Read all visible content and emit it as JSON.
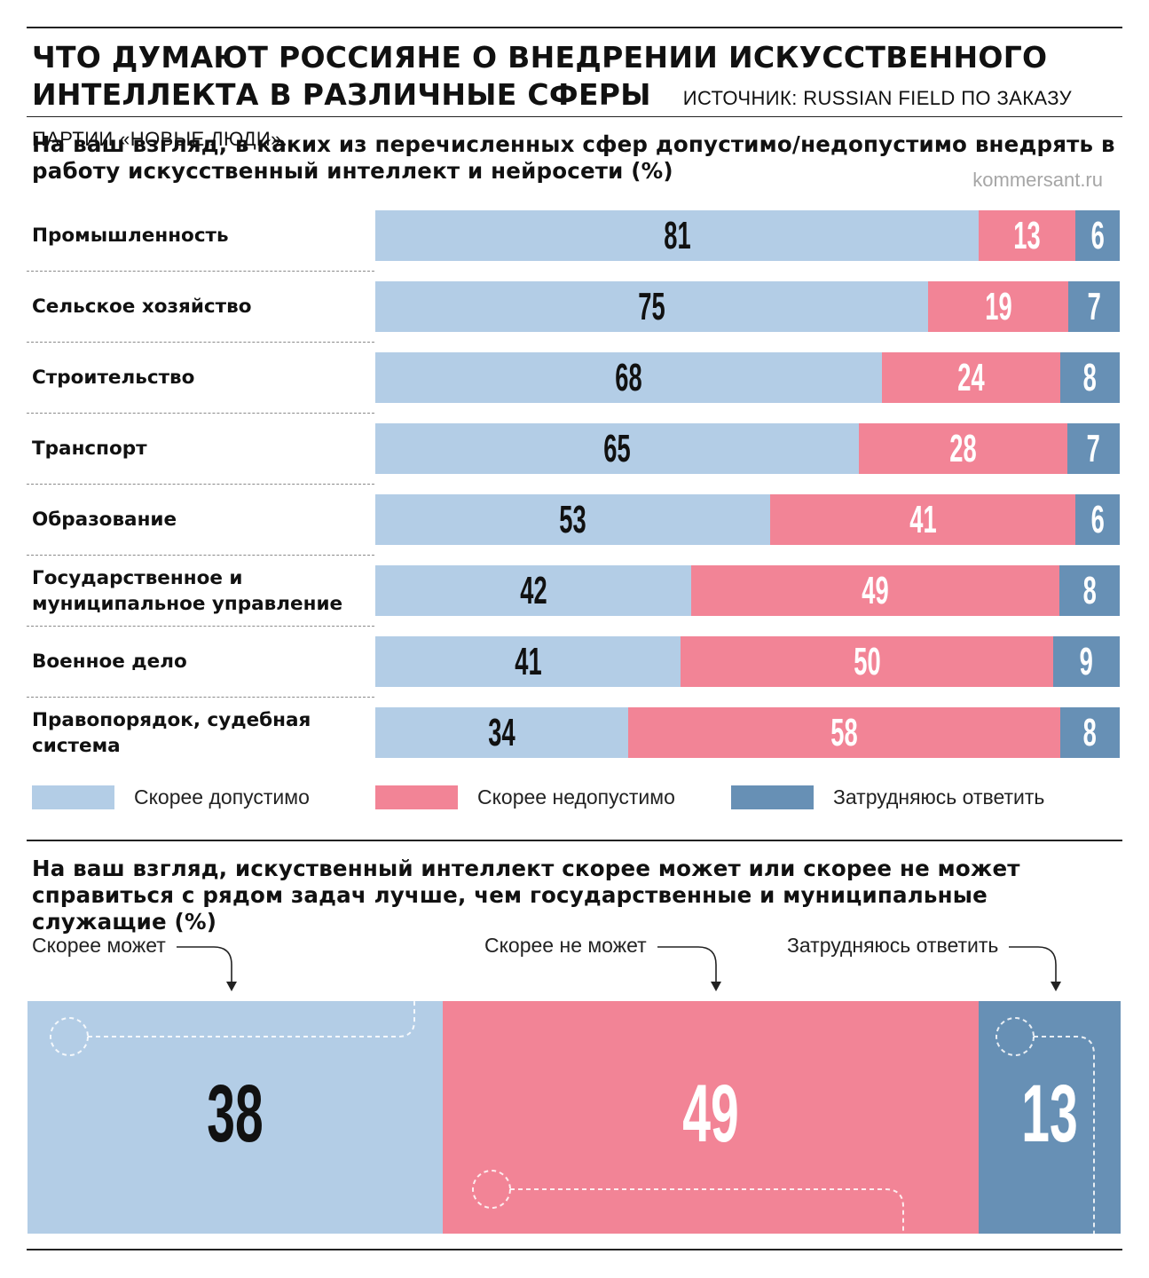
{
  "title": "ЧТО ДУМАЮТ РОССИЯНЕ О ВНЕДРЕНИИ ИСКУССТВЕННОГО ИНТЕЛЛЕКТА В РАЗЛИЧНЫЕ СФЕРЫ",
  "source": "ИСТОЧНИК: RUSSIAN FIELD ПО ЗАКАЗУ ПАРТИИ «НОВЫЕ ЛЮДИ».",
  "site": "kommersant.ru",
  "colors": {
    "allow": "#b3cde6",
    "deny": "#f28496",
    "unsure": "#6790b5"
  },
  "chart_data": [
    {
      "type": "bar",
      "title": "На ваш взгляд, в каких из перечисленных сфер допустимо/недопустимо внедрять в работу искусственный интеллект и нейросети (%)",
      "stacked": true,
      "orientation": "horizontal",
      "categories": [
        "Промышленность",
        "Сельское хозяйство",
        "Строительство",
        "Транспорт",
        "Образование",
        "Государственное и муниципальное управление",
        "Военное дело",
        "Правопорядок, судебная система"
      ],
      "series": [
        {
          "name": "Скорее допустимо",
          "color": "#b3cde6",
          "values": [
            81,
            75,
            68,
            65,
            53,
            42,
            41,
            34
          ]
        },
        {
          "name": "Скорее недопустимо",
          "color": "#f28496",
          "values": [
            13,
            19,
            24,
            28,
            41,
            49,
            50,
            58
          ]
        },
        {
          "name": "Затрудняюсь ответить",
          "color": "#6790b5",
          "values": [
            6,
            7,
            8,
            7,
            6,
            8,
            9,
            8
          ]
        }
      ],
      "legend": "bottom"
    },
    {
      "type": "bar",
      "title": "На ваш взгляд, искуственный интеллект скорее может или скорее не может справиться с рядом задач лучше, чем государственные и муниципальные служащие (%)",
      "stacked": true,
      "orientation": "horizontal",
      "categories": [
        ""
      ],
      "series": [
        {
          "name": "Скорее может",
          "color": "#b3cde6",
          "values": [
            38
          ]
        },
        {
          "name": "Скорее не может",
          "color": "#f28496",
          "values": [
            49
          ]
        },
        {
          "name": "Затрудняюсь ответить",
          "color": "#6790b5",
          "values": [
            13
          ]
        }
      ],
      "legend": "top"
    }
  ]
}
